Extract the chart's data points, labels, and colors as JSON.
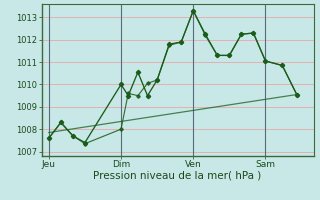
{
  "xlabel": "Pression niveau de la mer( hPa )",
  "bg_color": "#c8e8e8",
  "grid_color": "#e8a8a8",
  "line_color": "#1a5c1a",
  "vline_color": "#5a6a7a",
  "ylim": [
    1006.8,
    1013.6
  ],
  "yticks": [
    1007,
    1008,
    1009,
    1010,
    1011,
    1012,
    1013
  ],
  "xtick_labels": [
    "Jeu",
    "Dim",
    "Ven",
    "Sam"
  ],
  "xtick_positions": [
    0,
    3,
    6,
    9
  ],
  "vline_positions": [
    0,
    3,
    6,
    9
  ],
  "xlim": [
    -0.3,
    11.0
  ],
  "series1_x": [
    0,
    0.5,
    1.0,
    1.5,
    3.0,
    3.3,
    3.7,
    4.1,
    4.5,
    5.0,
    5.5,
    6.0,
    6.5,
    7.0,
    7.5,
    8.0,
    8.5,
    9.0,
    9.7,
    10.3
  ],
  "series1_y": [
    1007.6,
    1008.3,
    1007.7,
    1007.4,
    1010.0,
    1009.5,
    1010.55,
    1009.5,
    1010.2,
    1011.8,
    1011.9,
    1013.3,
    1012.25,
    1011.3,
    1011.3,
    1012.25,
    1012.3,
    1011.05,
    1010.85,
    1009.55
  ],
  "series2_x": [
    0,
    0.5,
    1.0,
    1.5,
    3.0,
    3.3,
    3.7,
    4.1,
    4.5,
    5.0,
    5.5,
    6.0,
    6.5,
    7.0,
    7.5,
    8.0,
    8.5,
    9.0,
    9.7,
    10.3
  ],
  "series2_y": [
    1007.6,
    1008.3,
    1007.7,
    1007.35,
    1008.0,
    1009.6,
    1009.5,
    1010.05,
    1010.2,
    1011.75,
    1011.9,
    1013.3,
    1012.2,
    1011.3,
    1011.3,
    1012.25,
    1012.3,
    1011.05,
    1010.85,
    1009.55
  ],
  "series3_x": [
    0,
    10.3
  ],
  "series3_y": [
    1007.85,
    1009.55
  ]
}
